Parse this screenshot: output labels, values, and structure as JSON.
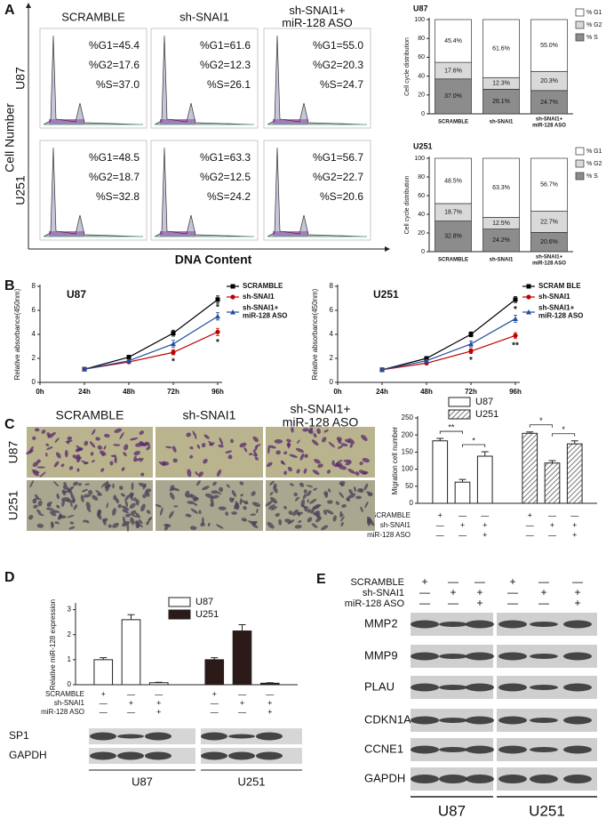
{
  "panel_labels": [
    "A",
    "B",
    "C",
    "D",
    "E"
  ],
  "flow": {
    "ylabel": "Cell Number",
    "xlabel": "DNA Content",
    "columns": [
      "SCRAMBLE",
      "sh-SNAI1",
      "sh-SNAI1+\nmiR-128 ASO"
    ],
    "rows": [
      "U87",
      "U251"
    ],
    "stats": [
      [
        [
          "%G1=45.4",
          "%G2=17.6",
          "%S=37.0"
        ],
        [
          "%G1=61.6",
          "%G2=12.3",
          "%S=26.1"
        ],
        [
          "%G1=55.0",
          "%G2=20.3",
          "%S=24.7"
        ]
      ],
      [
        [
          "%G1=48.5",
          "%G2=18.7",
          "%S=32.8"
        ],
        [
          "%G1=63.3",
          "%G2=12.5",
          "%S=24.2"
        ],
        [
          "%G1=56.7",
          "%G2=22.7",
          "%S=20.6"
        ]
      ]
    ]
  },
  "chart_data": [
    {
      "type": "stacked_bar",
      "title": "U87",
      "ylabel": "Cell cycle distribution",
      "categories": [
        "SCRAMBLE",
        "sh-SNAI1",
        "sh-SNAI1+\nmiR-128 ASO"
      ],
      "series": [
        {
          "name": "% G1",
          "color": "#ffffff",
          "values": [
            45.4,
            61.6,
            55.0
          ],
          "value_labels": [
            "45.4%",
            "61.6%",
            "55.0%"
          ]
        },
        {
          "name": "% G2",
          "color": "#d9d9d9",
          "values": [
            17.6,
            12.3,
            20.3
          ],
          "value_labels": [
            "17.6%",
            "12.3%",
            "20.3%"
          ]
        },
        {
          "name": "% S",
          "color": "#8c8c8c",
          "values": [
            37.0,
            26.1,
            24.7
          ],
          "value_labels": [
            "37.0%",
            "26.1%",
            "24.7%"
          ]
        }
      ],
      "ylim": [
        0,
        100
      ],
      "yticks": [
        0,
        20,
        40,
        60,
        80,
        100
      ]
    },
    {
      "type": "stacked_bar",
      "title": "U251",
      "ylabel": "Cell cycle distribution",
      "categories": [
        "SCRAMBLE",
        "sh-SNAI1",
        "sh-SNAI1+\nmiR-128 ASO"
      ],
      "series": [
        {
          "name": "% G1",
          "color": "#ffffff",
          "values": [
            48.5,
            63.3,
            56.7
          ],
          "value_labels": [
            "48.5%",
            "63.3%",
            "56.7%"
          ]
        },
        {
          "name": "% G2",
          "color": "#d9d9d9",
          "values": [
            18.7,
            12.5,
            22.7
          ],
          "value_labels": [
            "18.7%",
            "12.5%",
            "22.7%"
          ]
        },
        {
          "name": "% S",
          "color": "#8c8c8c",
          "values": [
            32.8,
            24.2,
            20.6
          ],
          "value_labels": [
            "32.8%",
            "24.2%",
            "20.6%"
          ]
        }
      ],
      "ylim": [
        0,
        100
      ],
      "yticks": [
        0,
        20,
        40,
        60,
        80,
        100
      ]
    },
    {
      "type": "line",
      "title": "U87",
      "ylabel": "Relative absorbance(450nm)",
      "categories": [
        "0h",
        "24h",
        "48h",
        "72h",
        "96h"
      ],
      "series": [
        {
          "name": "SCRAMBLE",
          "color": "#000000",
          "marker": "square",
          "values": [
            null,
            1.1,
            2.1,
            4.1,
            6.9
          ],
          "errors": [
            null,
            0.1,
            0.15,
            0.25,
            0.3
          ]
        },
        {
          "name": "sh-SNAI1",
          "color": "#c00000",
          "marker": "circle",
          "values": [
            null,
            1.1,
            1.7,
            2.5,
            4.2
          ],
          "errors": [
            null,
            0.1,
            0.1,
            0.2,
            0.3
          ]
        },
        {
          "name": "sh-SNAI1+\nmiR-128 ASO",
          "color": "#1f4e9e",
          "marker": "triangle",
          "values": [
            null,
            1.1,
            1.8,
            3.2,
            5.5
          ],
          "errors": [
            null,
            0.1,
            0.1,
            0.3,
            0.3
          ]
        }
      ],
      "ylim": [
        0,
        8
      ],
      "yticks": [
        0,
        2,
        4,
        6,
        8
      ],
      "annotations": [
        {
          "text": "*",
          "x": "72h",
          "series": "sh-SNAI1"
        },
        {
          "text": "*",
          "x": "96h",
          "series": "sh-SNAI1+\nmiR-128 ASO"
        },
        {
          "text": "*",
          "x": "96h",
          "series": "sh-SNAI1"
        }
      ]
    },
    {
      "type": "line",
      "title": "U251",
      "ylabel": "Relative absorbance(450nm)",
      "categories": [
        "0h",
        "24h",
        "48h",
        "72h",
        "96h"
      ],
      "series": [
        {
          "name": "SCRAM BLE",
          "color": "#000000",
          "marker": "square",
          "values": [
            null,
            1.05,
            2.0,
            4.0,
            6.9
          ],
          "errors": [
            null,
            0.1,
            0.15,
            0.2,
            0.25
          ]
        },
        {
          "name": "sh-SNAI1",
          "color": "#c00000",
          "marker": "circle",
          "values": [
            null,
            1.05,
            1.6,
            2.6,
            3.9
          ],
          "errors": [
            null,
            0.1,
            0.1,
            0.2,
            0.25
          ]
        },
        {
          "name": "sh-SNAI1+\nmiR-128 ASO",
          "color": "#1f4e9e",
          "marker": "triangle",
          "values": [
            null,
            1.05,
            1.8,
            3.2,
            5.3
          ],
          "errors": [
            null,
            0.1,
            0.1,
            0.25,
            0.3
          ]
        }
      ],
      "ylim": [
        0,
        8
      ],
      "yticks": [
        0,
        2,
        4,
        6,
        8
      ],
      "annotations": [
        {
          "text": "*",
          "x": "72h",
          "series": "sh-SNAI1"
        },
        {
          "text": "*",
          "x": "96h",
          "series": "sh-SNAI1+\nmiR-128 ASO"
        },
        {
          "text": "**",
          "x": "96h",
          "series": "sh-SNAI1"
        }
      ]
    },
    {
      "type": "group_bar",
      "ylabel": "Migration cell number",
      "series": [
        {
          "name": "U87",
          "color": "#ffffff",
          "values": [
            183,
            62,
            138
          ],
          "errors": [
            7,
            8,
            13
          ],
          "brackets": [
            {
              "text": "**",
              "between": [
                0,
                1
              ]
            },
            {
              "text": "*",
              "between": [
                1,
                2
              ]
            }
          ]
        },
        {
          "name": "U251",
          "color": "#ffffff",
          "pattern": "hatch",
          "values": [
            205,
            118,
            174
          ],
          "errors": [
            4,
            7,
            9
          ],
          "brackets": [
            {
              "text": "*",
              "between": [
                0,
                1
              ]
            },
            {
              "text": "*",
              "between": [
                1,
                2
              ]
            }
          ]
        }
      ],
      "ylim": [
        0,
        250
      ],
      "yticks": [
        0,
        50,
        100,
        150,
        200,
        250
      ],
      "conditions": {
        "rows": [
          "SCRAMBLE",
          "sh-SNAI1",
          "miR-128 ASO"
        ],
        "signs": [
          [
            "+",
            "—",
            "—",
            "+",
            "—",
            "—"
          ],
          [
            "—",
            "+",
            "+",
            "—",
            "+",
            "+"
          ],
          [
            "—",
            "—",
            "+",
            "—",
            "—",
            "+"
          ]
        ]
      }
    },
    {
      "type": "group_bar",
      "ylabel": "Relative miR-128 expression",
      "series": [
        {
          "name": "U87",
          "color": "#ffffff",
          "values": [
            1.0,
            2.6,
            0.08
          ],
          "errors": [
            0.08,
            0.2,
            0.02
          ]
        },
        {
          "name": "U251",
          "color": "#2b1a17",
          "values": [
            1.0,
            2.15,
            0.06
          ],
          "errors": [
            0.08,
            0.25,
            0.02
          ]
        }
      ],
      "ylim": [
        0,
        3.2
      ],
      "yticks": [
        0,
        1,
        2,
        3
      ],
      "conditions": {
        "rows": [
          "SCRAMBLE",
          "sh-SNAI1",
          "miR-128 ASO"
        ],
        "signs": [
          [
            "+",
            "—",
            "—",
            "+",
            "—",
            "—"
          ],
          [
            "—",
            "+",
            "+",
            "—",
            "+",
            "+"
          ],
          [
            "—",
            "—",
            "+",
            "—",
            "—",
            "+"
          ]
        ]
      }
    }
  ],
  "migration_images": {
    "columns": [
      "SCRAMBLE",
      "sh-SNAI1",
      "sh-SNAI1+\nmiR-128 ASO"
    ],
    "rows": [
      "U87",
      "U251"
    ]
  },
  "western_d": {
    "rows": [
      "SP1",
      "GAPDH"
    ],
    "groups": [
      "U87",
      "U251"
    ]
  },
  "western_e": {
    "conditions": {
      "rows": [
        "SCRAMBLE",
        "sh-SNAI1",
        "miR-128 ASO"
      ],
      "signs": [
        [
          "+",
          "—",
          "—",
          "+",
          "—",
          "—"
        ],
        [
          "—",
          "+",
          "+",
          "—",
          "+",
          "+"
        ],
        [
          "—",
          "—",
          "+",
          "—",
          "—",
          "+"
        ]
      ]
    },
    "rows": [
      "MMP2",
      "MMP9",
      "PLAU",
      "CDKN1A",
      "CCNE1",
      "GAPDH"
    ],
    "groups": [
      "U87",
      "U251"
    ]
  }
}
